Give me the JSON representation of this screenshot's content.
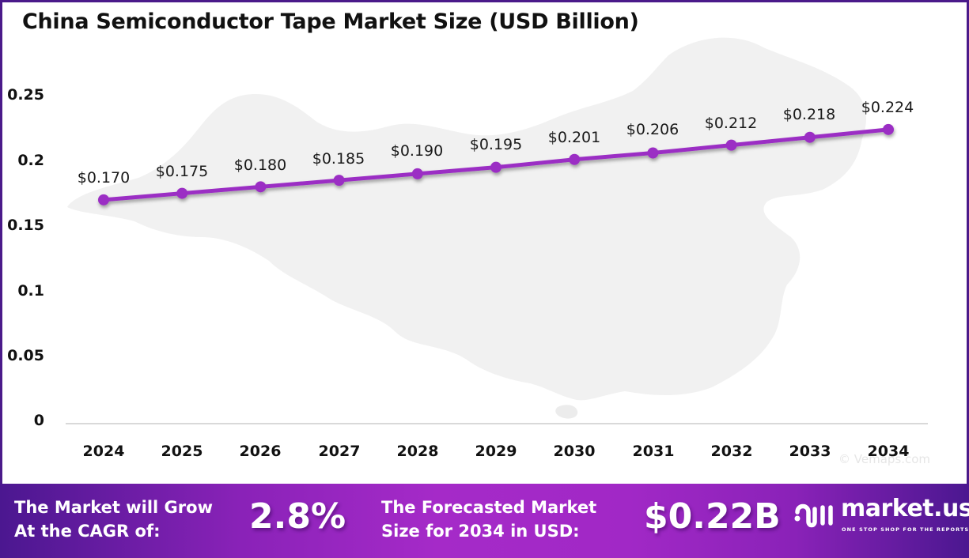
{
  "title": "China Semiconductor Tape  Market Size (USD Billion)",
  "watermark": "© Vemaps.com",
  "colors": {
    "line": "#9b2fc4",
    "marker": "#9b2fc4",
    "frame_border": "#4a1a8a",
    "map_fill": "#f1f1f1",
    "baseline": "#d9d9d9",
    "banner_dark": "#4b1790",
    "banner_light": "#a52ac8"
  },
  "y_axis": {
    "ticks": [
      "0.25",
      "0.2",
      "0.15",
      "0.1",
      "0.05",
      "0"
    ]
  },
  "x_axis": {
    "ticks": [
      "2024",
      "2025",
      "2026",
      "2027",
      "2028",
      "2029",
      "2030",
      "2031",
      "2032",
      "2033",
      "2034"
    ]
  },
  "data_labels": [
    "$0.170",
    "$0.175",
    "$0.180",
    "$0.185",
    "$0.190",
    "$0.195",
    "$0.201",
    "$0.206",
    "$0.212",
    "$0.218",
    "$0.224"
  ],
  "chart_data": {
    "type": "line",
    "title": "China Semiconductor Tape  Market Size (USD Billion)",
    "xlabel": "",
    "ylabel": "",
    "categories": [
      "2024",
      "2025",
      "2026",
      "2027",
      "2028",
      "2029",
      "2030",
      "2031",
      "2032",
      "2033",
      "2034"
    ],
    "series": [
      {
        "name": "Market Size (USD Billion)",
        "values": [
          0.17,
          0.175,
          0.18,
          0.185,
          0.19,
          0.195,
          0.201,
          0.206,
          0.212,
          0.218,
          0.224
        ]
      }
    ],
    "data_labels": [
      "$0.170",
      "$0.175",
      "$0.180",
      "$0.185",
      "$0.190",
      "$0.195",
      "$0.201",
      "$0.206",
      "$0.212",
      "$0.218",
      "$0.224"
    ],
    "ylim": [
      0,
      0.25
    ],
    "yticks": [
      0,
      0.05,
      0.1,
      0.15,
      0.2,
      0.25
    ],
    "grid": false,
    "legend": null
  },
  "banner": {
    "cagr_text_line1": "The Market will Grow",
    "cagr_text_line2": "At the CAGR of:",
    "cagr_value": "2.8%",
    "forecast_text_line1": "The Forecasted Market",
    "forecast_text_line2": "Size for 2034 in USD:",
    "forecast_value": "$0.22B",
    "brand_name": "market.us",
    "brand_tagline": "ONE STOP SHOP FOR THE REPORTS"
  }
}
